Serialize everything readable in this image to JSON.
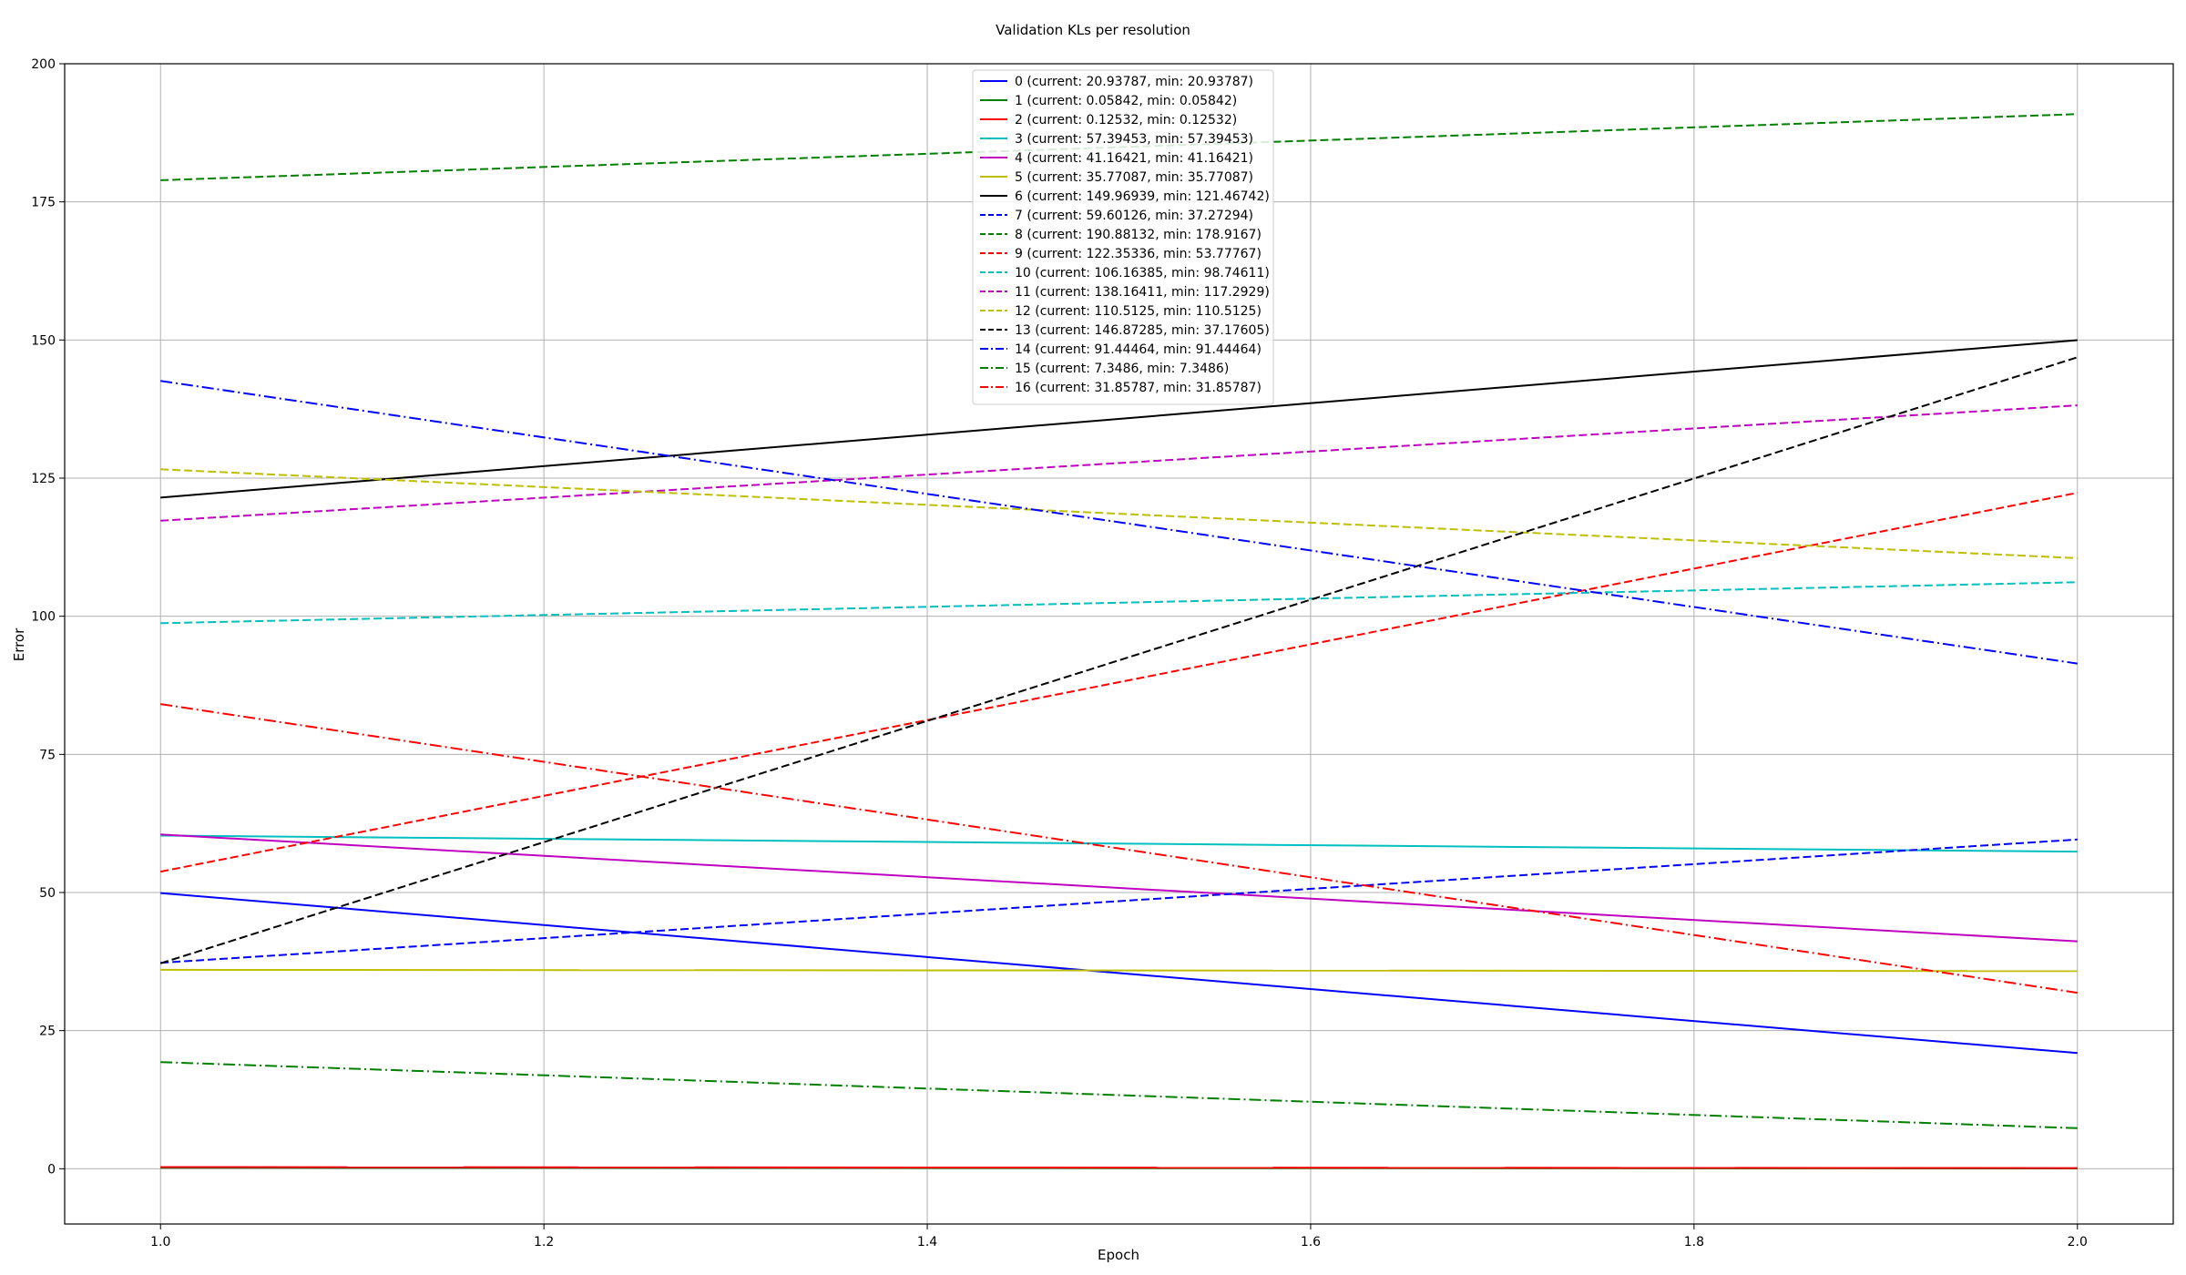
{
  "chart_data": {
    "type": "line",
    "title": "Validation KLs per resolution",
    "xlabel": "Epoch",
    "ylabel": "Error",
    "xlim": [
      0.95,
      2.05
    ],
    "ylim": [
      -10,
      200
    ],
    "xticks": [
      1.0,
      1.2,
      1.4,
      1.6,
      1.8,
      2.0
    ],
    "xtick_labels": [
      "1.0",
      "1.2",
      "1.4",
      "1.6",
      "1.8",
      "2.0"
    ],
    "yticks": [
      0,
      25,
      50,
      75,
      100,
      125,
      150,
      175,
      200
    ],
    "ytick_labels": [
      "0",
      "25",
      "50",
      "75",
      "100",
      "125",
      "150",
      "175",
      "200"
    ],
    "grid": true,
    "legend_position": "top-center",
    "x": [
      1.0,
      2.0
    ],
    "series": [
      {
        "name": "0 (current: 20.93787, min: 20.93787)",
        "values": [
          49.9,
          20.93787
        ],
        "color": "#0000ff",
        "style": "solid"
      },
      {
        "name": "1 (current: 0.05842, min: 0.05842)",
        "values": [
          0.2,
          0.05842
        ],
        "color": "#008000",
        "style": "solid"
      },
      {
        "name": "2 (current: 0.12532, min: 0.12532)",
        "values": [
          0.3,
          0.12532
        ],
        "color": "#ff0000",
        "style": "solid"
      },
      {
        "name": "3 (current: 57.39453, min: 57.39453)",
        "values": [
          60.3,
          57.39453
        ],
        "color": "#00bfbf",
        "style": "solid"
      },
      {
        "name": "4 (current: 41.16421, min: 41.16421)",
        "values": [
          60.5,
          41.16421
        ],
        "color": "#bf00bf",
        "style": "solid"
      },
      {
        "name": "5 (current: 35.77087, min: 35.77087)",
        "values": [
          36.0,
          35.77087
        ],
        "color": "#bfbf00",
        "style": "solid"
      },
      {
        "name": "6 (current: 149.96939, min: 121.46742)",
        "values": [
          121.46742,
          149.96939
        ],
        "color": "#000000",
        "style": "solid"
      },
      {
        "name": "7 (current: 59.60126, min: 37.27294)",
        "values": [
          37.27294,
          59.60126
        ],
        "color": "#0000ff",
        "style": "dashed"
      },
      {
        "name": "8 (current: 190.88132, min: 178.9167)",
        "values": [
          178.9167,
          190.88132
        ],
        "color": "#008000",
        "style": "dashed"
      },
      {
        "name": "9 (current: 122.35336, min: 53.77767)",
        "values": [
          53.77767,
          122.35336
        ],
        "color": "#ff0000",
        "style": "dashed"
      },
      {
        "name": "10 (current: 106.16385, min: 98.74611)",
        "values": [
          98.74611,
          106.16385
        ],
        "color": "#00bfbf",
        "style": "dashed"
      },
      {
        "name": "11 (current: 138.16411, min: 117.2929)",
        "values": [
          117.2929,
          138.16411
        ],
        "color": "#bf00bf",
        "style": "dashed"
      },
      {
        "name": "12 (current: 110.5125, min: 110.5125)",
        "values": [
          126.6,
          110.5125
        ],
        "color": "#bfbf00",
        "style": "dashed"
      },
      {
        "name": "13 (current: 146.87285, min: 37.17605)",
        "values": [
          37.17605,
          146.87285
        ],
        "color": "#000000",
        "style": "dashed"
      },
      {
        "name": "14 (current: 91.44464, min: 91.44464)",
        "values": [
          142.6,
          91.44464
        ],
        "color": "#0000ff",
        "style": "dashdot"
      },
      {
        "name": "15 (current: 7.3486, min: 7.3486)",
        "values": [
          19.3,
          7.3486
        ],
        "color": "#008000",
        "style": "dashdot"
      },
      {
        "name": "16 (current: 31.85787, min: 31.85787)",
        "values": [
          84.1,
          31.85787
        ],
        "color": "#ff0000",
        "style": "dashdot"
      }
    ]
  }
}
